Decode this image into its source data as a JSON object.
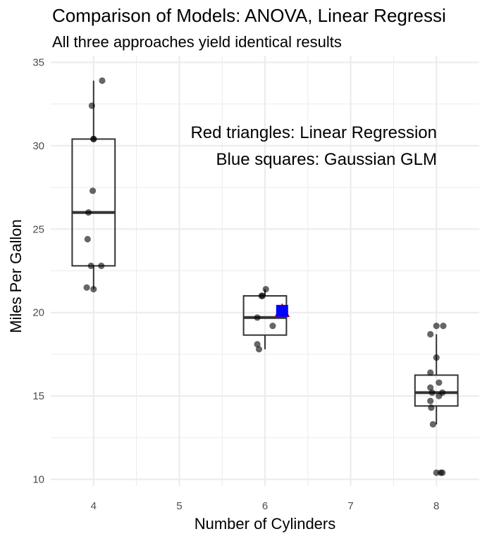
{
  "chart_data": {
    "type": "box",
    "title": "Comparison of Models: ANOVA, Linear Regressi",
    "subtitle": "All three approaches yield identical results",
    "xlabel": "Number of Cylinders",
    "ylabel": "Miles Per Gallon",
    "xlim": [
      3.5,
      8.5
    ],
    "ylim": [
      9.6,
      35.4
    ],
    "x_ticks": [
      4,
      5,
      6,
      7,
      8
    ],
    "y_ticks": [
      10,
      15,
      20,
      25,
      30,
      35
    ],
    "grid": true,
    "annotations": [
      "Red triangles: Linear Regression",
      "Blue squares: Gaussian GLM"
    ],
    "boxes": [
      {
        "x": 4,
        "q1": 22.8,
        "median": 26.0,
        "q3": 30.4,
        "whisker_low": 21.4,
        "whisker_high": 33.9
      },
      {
        "x": 6,
        "q1": 18.65,
        "median": 19.7,
        "q3": 21.0,
        "whisker_low": 17.8,
        "whisker_high": 21.4
      },
      {
        "x": 8,
        "q1": 14.4,
        "median": 15.2,
        "q3": 16.25,
        "whisker_low": 13.3,
        "whisker_high": 18.7
      }
    ],
    "points": [
      {
        "x": 4.0,
        "y": 30.4
      },
      {
        "x": 4.0,
        "y": 30.4
      },
      {
        "x": 4.1,
        "y": 33.9
      },
      {
        "x": 3.98,
        "y": 32.4
      },
      {
        "x": 3.99,
        "y": 27.3
      },
      {
        "x": 3.94,
        "y": 26.0
      },
      {
        "x": 3.93,
        "y": 24.4
      },
      {
        "x": 3.97,
        "y": 22.8
      },
      {
        "x": 4.09,
        "y": 22.8
      },
      {
        "x": 3.92,
        "y": 21.5
      },
      {
        "x": 4.0,
        "y": 21.4
      },
      {
        "x": 6.01,
        "y": 21.4
      },
      {
        "x": 5.97,
        "y": 21.0
      },
      {
        "x": 5.96,
        "y": 21.0
      },
      {
        "x": 5.91,
        "y": 19.7
      },
      {
        "x": 6.09,
        "y": 19.2
      },
      {
        "x": 5.91,
        "y": 18.1
      },
      {
        "x": 5.93,
        "y": 17.8
      },
      {
        "x": 8.0,
        "y": 19.2
      },
      {
        "x": 8.08,
        "y": 19.2
      },
      {
        "x": 7.93,
        "y": 18.7
      },
      {
        "x": 8.0,
        "y": 17.3
      },
      {
        "x": 7.93,
        "y": 16.4
      },
      {
        "x": 8.03,
        "y": 15.8
      },
      {
        "x": 7.93,
        "y": 15.5
      },
      {
        "x": 7.95,
        "y": 15.2
      },
      {
        "x": 8.07,
        "y": 15.2
      },
      {
        "x": 8.03,
        "y": 15.0
      },
      {
        "x": 7.93,
        "y": 14.7
      },
      {
        "x": 7.94,
        "y": 14.3
      },
      {
        "x": 7.96,
        "y": 13.3
      },
      {
        "x": 8.0,
        "y": 10.4
      },
      {
        "x": 8.05,
        "y": 10.4
      },
      {
        "x": 8.07,
        "y": 10.4
      }
    ],
    "linear_regression_points": [
      {
        "x": 6.2,
        "y": 20.1
      }
    ],
    "gaussian_glm_points": [
      {
        "x": 6.2,
        "y": 20.1
      }
    ],
    "colors": {
      "box": "#333333",
      "points": "#000000",
      "triangle": "#cc0000",
      "square": "#0000ff",
      "grid": "#ebebeb"
    }
  }
}
